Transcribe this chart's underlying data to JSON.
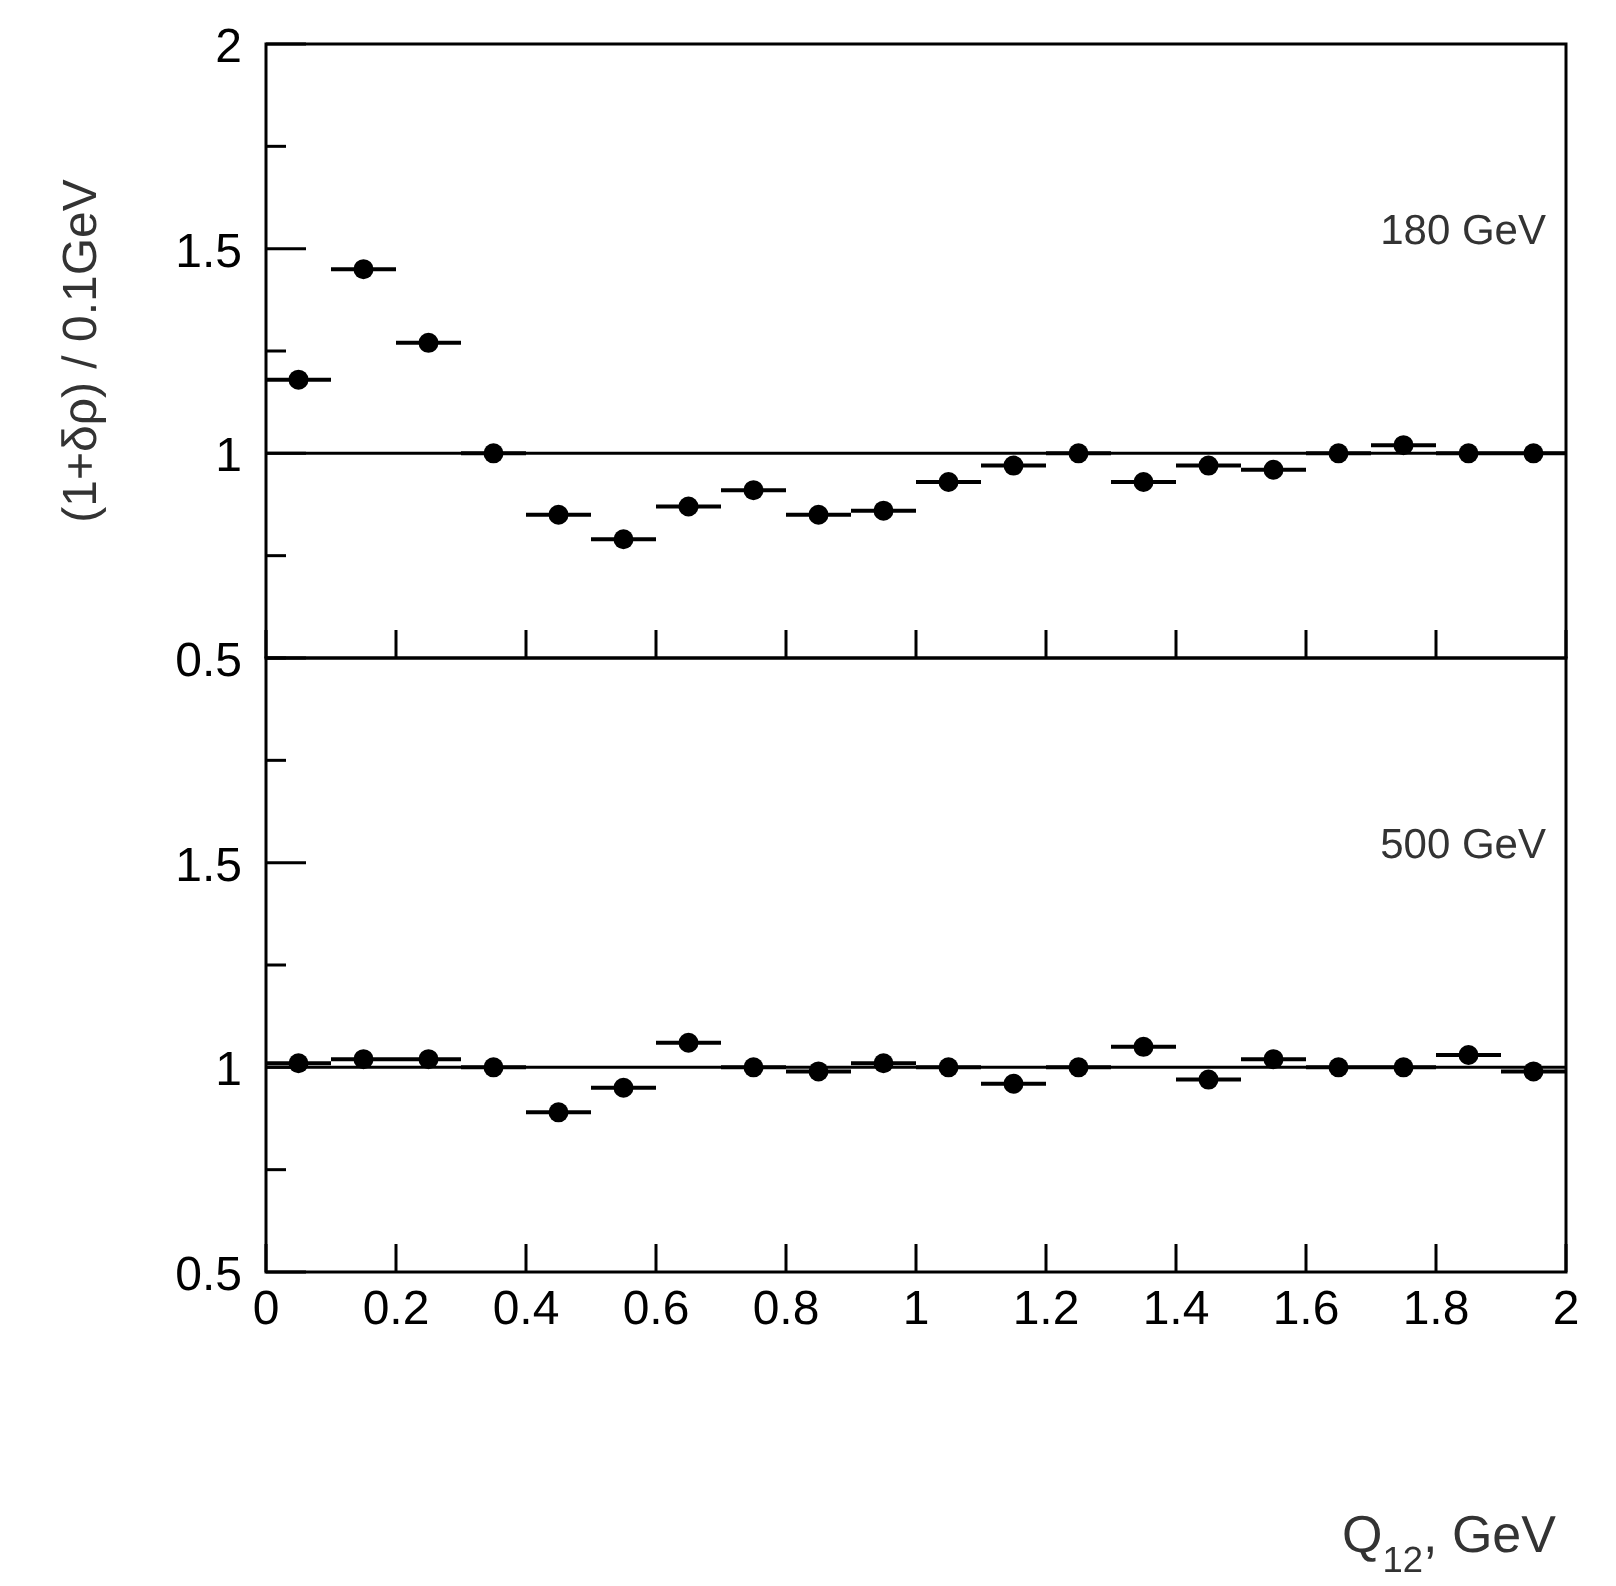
{
  "chart_data": [
    {
      "type": "scatter",
      "ylabel": "(1+δρ) / 0.1GeV",
      "annotations": [
        "180 GeV"
      ],
      "x": [
        0.05,
        0.15,
        0.25,
        0.35,
        0.45,
        0.55,
        0.65,
        0.75,
        0.85,
        0.95,
        1.05,
        1.15,
        1.25,
        1.35,
        1.45,
        1.55,
        1.65,
        1.75,
        1.85,
        1.95
      ],
      "series": [
        {
          "color": "#000000",
          "values": [
            1.18,
            1.45,
            1.27,
            1.0,
            0.85,
            0.79,
            0.87,
            0.91,
            0.85,
            0.86,
            0.93,
            0.97,
            1.0,
            0.93,
            0.97,
            0.96,
            1.0,
            1.02,
            1.0,
            1.0
          ],
          "xerrors": [
            0.05,
            0.05,
            0.05,
            0.05,
            0.05,
            0.05,
            0.05,
            0.05,
            0.05,
            0.05,
            0.05,
            0.05,
            0.05,
            0.05,
            0.05,
            0.05,
            0.05,
            0.05,
            0.05,
            0.05
          ]
        }
      ],
      "xlim": [
        0,
        2
      ],
      "xticks": [
        {
          "value": 0,
          "label": null
        },
        {
          "value": 0.2,
          "label": null
        },
        {
          "value": 0.4,
          "label": null
        },
        {
          "value": 0.6,
          "label": null
        },
        {
          "value": 0.8,
          "label": null
        },
        {
          "value": 1,
          "label": null
        },
        {
          "value": 1.2,
          "label": null
        },
        {
          "value": 1.4,
          "label": null
        },
        {
          "value": 1.6,
          "label": null
        },
        {
          "value": 1.8,
          "label": null
        },
        {
          "value": 2,
          "label": null
        }
      ],
      "ylim": [
        0.5,
        2
      ],
      "yticks": [
        0.5,
        {
          "value": 0.75,
          "label": null
        },
        1,
        {
          "value": 1.25,
          "label": null
        },
        1.5,
        {
          "value": 1.75,
          "label": null
        },
        2
      ],
      "tick_labels": "y",
      "marker": "circle",
      "ref_lines": [
        {
          "axis": "y",
          "value": 1
        }
      ]
    },
    {
      "type": "scatter",
      "xlabel": "Q$_{12}$, GeV",
      "annotations": [
        "500 GeV"
      ],
      "x": [
        0.05,
        0.15,
        0.25,
        0.35,
        0.45,
        0.55,
        0.65,
        0.75,
        0.85,
        0.95,
        1.05,
        1.15,
        1.25,
        1.35,
        1.45,
        1.55,
        1.65,
        1.75,
        1.85,
        1.95
      ],
      "series": [
        {
          "color": "#000000",
          "values": [
            1.01,
            1.02,
            1.02,
            1.0,
            0.89,
            0.95,
            1.06,
            1.0,
            0.99,
            1.01,
            1.0,
            0.96,
            1.0,
            1.05,
            0.97,
            1.02,
            1.0,
            1.0,
            1.03,
            0.99
          ],
          "xerrors": [
            0.05,
            0.05,
            0.05,
            0.05,
            0.05,
            0.05,
            0.05,
            0.05,
            0.05,
            0.05,
            0.05,
            0.05,
            0.05,
            0.05,
            0.05,
            0.05,
            0.05,
            0.05,
            0.05,
            0.05
          ]
        }
      ],
      "xlim": [
        0,
        2
      ],
      "xticks": [
        0,
        0.2,
        0.4,
        0.6,
        0.8,
        1,
        1.2,
        1.4,
        1.6,
        1.8,
        2
      ],
      "ylim": [
        0.5,
        2
      ],
      "yticks": [
        0.5,
        {
          "value": 0.75,
          "label": null
        },
        1,
        {
          "value": 1.25,
          "label": null
        },
        1.5,
        {
          "value": 1.75,
          "label": null
        },
        {
          "value": 2,
          "label": null
        }
      ],
      "marker": "circle",
      "ref_lines": [
        {
          "axis": "y",
          "value": 1
        }
      ]
    }
  ]
}
